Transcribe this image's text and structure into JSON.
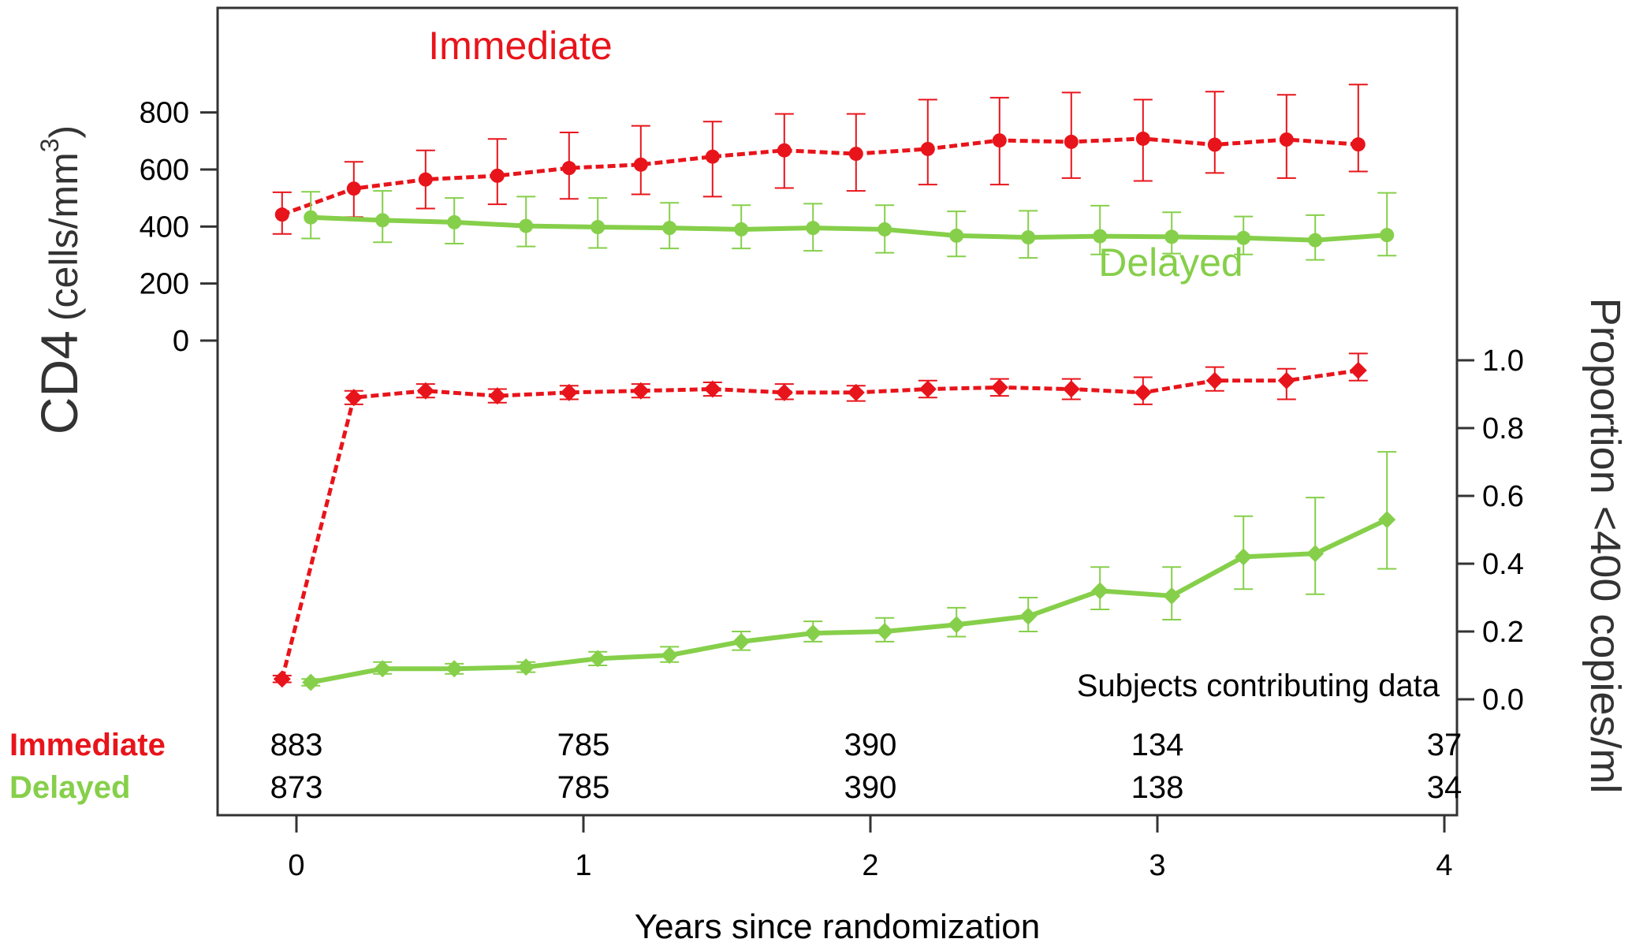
{
  "chart_data": {
    "type": "line",
    "xlabel": "Years since randomization",
    "xlim": [
      0,
      4
    ],
    "xticks": [
      "0",
      "1",
      "2",
      "3",
      "4"
    ],
    "colors": {
      "immediate": "#e8141b",
      "delayed": "#86cf4a"
    },
    "panels": [
      {
        "name": "cd4",
        "ylabel_main": "CD4",
        "ylabel_units_prefix": "(cells/mm",
        "ylabel_units_sup": "3",
        "ylabel_units_suffix": ")",
        "ylim": [
          0,
          850
        ],
        "yticks": [
          "0",
          "200",
          "400",
          "600",
          "800"
        ],
        "series": [
          {
            "name": "Immediate",
            "style": "dashed",
            "points": [
              {
                "x": -0.05,
                "y": 442,
                "lo": 374,
                "hi": 520
              },
              {
                "x": 0.2,
                "y": 533,
                "lo": 433,
                "hi": 627
              },
              {
                "x": 0.45,
                "y": 565,
                "lo": 463,
                "hi": 667
              },
              {
                "x": 0.7,
                "y": 578,
                "lo": 478,
                "hi": 707
              },
              {
                "x": 0.95,
                "y": 605,
                "lo": 497,
                "hi": 730
              },
              {
                "x": 1.2,
                "y": 617,
                "lo": 513,
                "hi": 753
              },
              {
                "x": 1.45,
                "y": 645,
                "lo": 505,
                "hi": 768
              },
              {
                "x": 1.7,
                "y": 667,
                "lo": 535,
                "hi": 795
              },
              {
                "x": 1.95,
                "y": 655,
                "lo": 525,
                "hi": 795
              },
              {
                "x": 2.2,
                "y": 672,
                "lo": 547,
                "hi": 845
              },
              {
                "x": 2.45,
                "y": 702,
                "lo": 547,
                "hi": 852
              },
              {
                "x": 2.7,
                "y": 697,
                "lo": 570,
                "hi": 870
              },
              {
                "x": 2.95,
                "y": 708,
                "lo": 560,
                "hi": 845
              },
              {
                "x": 3.2,
                "y": 687,
                "lo": 588,
                "hi": 873
              },
              {
                "x": 3.45,
                "y": 705,
                "lo": 570,
                "hi": 862
              },
              {
                "x": 3.7,
                "y": 688,
                "lo": 593,
                "hi": 898
              }
            ]
          },
          {
            "name": "Delayed",
            "style": "solid",
            "points": [
              {
                "x": 0.05,
                "y": 432,
                "lo": 358,
                "hi": 522
              },
              {
                "x": 0.3,
                "y": 422,
                "lo": 345,
                "hi": 525
              },
              {
                "x": 0.55,
                "y": 415,
                "lo": 340,
                "hi": 500
              },
              {
                "x": 0.8,
                "y": 402,
                "lo": 330,
                "hi": 505
              },
              {
                "x": 1.05,
                "y": 398,
                "lo": 325,
                "hi": 500
              },
              {
                "x": 1.3,
                "y": 395,
                "lo": 323,
                "hi": 483
              },
              {
                "x": 1.55,
                "y": 390,
                "lo": 323,
                "hi": 475
              },
              {
                "x": 1.8,
                "y": 395,
                "lo": 315,
                "hi": 480
              },
              {
                "x": 2.05,
                "y": 390,
                "lo": 308,
                "hi": 475
              },
              {
                "x": 2.3,
                "y": 368,
                "lo": 295,
                "hi": 453
              },
              {
                "x": 2.55,
                "y": 362,
                "lo": 290,
                "hi": 455
              },
              {
                "x": 2.8,
                "y": 366,
                "lo": 302,
                "hi": 473
              },
              {
                "x": 3.05,
                "y": 364,
                "lo": 305,
                "hi": 450
              },
              {
                "x": 3.3,
                "y": 360,
                "lo": 302,
                "hi": 435
              },
              {
                "x": 3.55,
                "y": 352,
                "lo": 283,
                "hi": 440
              },
              {
                "x": 3.8,
                "y": 370,
                "lo": 298,
                "hi": 518
              }
            ]
          }
        ]
      },
      {
        "name": "proportion",
        "ylabel": "Proportion <400 copies/ml",
        "ylim": [
          0,
          1.0
        ],
        "yticks": [
          "0.0",
          "0.2",
          "0.4",
          "0.6",
          "0.8",
          "1.0"
        ],
        "series": [
          {
            "name": "Immediate",
            "style": "dashed",
            "points": [
              {
                "x": -0.05,
                "y": 0.06,
                "lo": 0.05,
                "hi": 0.07
              },
              {
                "x": 0.2,
                "y": 0.89,
                "lo": 0.87,
                "hi": 0.91
              },
              {
                "x": 0.45,
                "y": 0.91,
                "lo": 0.89,
                "hi": 0.93
              },
              {
                "x": 0.7,
                "y": 0.895,
                "lo": 0.875,
                "hi": 0.915
              },
              {
                "x": 0.95,
                "y": 0.905,
                "lo": 0.885,
                "hi": 0.925
              },
              {
                "x": 1.2,
                "y": 0.91,
                "lo": 0.89,
                "hi": 0.93
              },
              {
                "x": 1.45,
                "y": 0.915,
                "lo": 0.895,
                "hi": 0.935
              },
              {
                "x": 1.7,
                "y": 0.905,
                "lo": 0.885,
                "hi": 0.93
              },
              {
                "x": 1.95,
                "y": 0.905,
                "lo": 0.88,
                "hi": 0.925
              },
              {
                "x": 2.2,
                "y": 0.915,
                "lo": 0.89,
                "hi": 0.94
              },
              {
                "x": 2.45,
                "y": 0.92,
                "lo": 0.895,
                "hi": 0.945
              },
              {
                "x": 2.7,
                "y": 0.915,
                "lo": 0.885,
                "hi": 0.945
              },
              {
                "x": 2.95,
                "y": 0.905,
                "lo": 0.87,
                "hi": 0.95
              },
              {
                "x": 3.2,
                "y": 0.94,
                "lo": 0.91,
                "hi": 0.98
              },
              {
                "x": 3.45,
                "y": 0.94,
                "lo": 0.885,
                "hi": 0.975
              },
              {
                "x": 3.7,
                "y": 0.97,
                "lo": 0.94,
                "hi": 1.02
              }
            ]
          },
          {
            "name": "Delayed",
            "style": "solid",
            "points": [
              {
                "x": 0.05,
                "y": 0.05,
                "lo": 0.04,
                "hi": 0.06
              },
              {
                "x": 0.3,
                "y": 0.09,
                "lo": 0.075,
                "hi": 0.11
              },
              {
                "x": 0.55,
                "y": 0.09,
                "lo": 0.075,
                "hi": 0.105
              },
              {
                "x": 0.8,
                "y": 0.095,
                "lo": 0.08,
                "hi": 0.11
              },
              {
                "x": 1.05,
                "y": 0.12,
                "lo": 0.1,
                "hi": 0.14
              },
              {
                "x": 1.3,
                "y": 0.13,
                "lo": 0.11,
                "hi": 0.155
              },
              {
                "x": 1.55,
                "y": 0.17,
                "lo": 0.145,
                "hi": 0.2
              },
              {
                "x": 1.8,
                "y": 0.195,
                "lo": 0.17,
                "hi": 0.23
              },
              {
                "x": 2.05,
                "y": 0.2,
                "lo": 0.17,
                "hi": 0.24
              },
              {
                "x": 2.3,
                "y": 0.22,
                "lo": 0.185,
                "hi": 0.27
              },
              {
                "x": 2.55,
                "y": 0.245,
                "lo": 0.2,
                "hi": 0.3
              },
              {
                "x": 2.8,
                "y": 0.32,
                "lo": 0.265,
                "hi": 0.39
              },
              {
                "x": 3.05,
                "y": 0.305,
                "lo": 0.235,
                "hi": 0.39
              },
              {
                "x": 3.3,
                "y": 0.42,
                "lo": 0.325,
                "hi": 0.54
              },
              {
                "x": 3.55,
                "y": 0.43,
                "lo": 0.31,
                "hi": 0.595
              },
              {
                "x": 3.8,
                "y": 0.53,
                "lo": 0.385,
                "hi": 0.73
              }
            ]
          }
        ]
      }
    ],
    "annotations": {
      "immediate_label": "Immediate",
      "delayed_label": "Delayed",
      "subjects_caption": "Subjects contributing data"
    },
    "subjects_table": {
      "rows": [
        {
          "label": "Immediate",
          "values": [
            "883",
            "785",
            "390",
            "134",
            "37"
          ]
        },
        {
          "label": "Delayed",
          "values": [
            "873",
            "785",
            "390",
            "138",
            "34"
          ]
        }
      ]
    }
  }
}
